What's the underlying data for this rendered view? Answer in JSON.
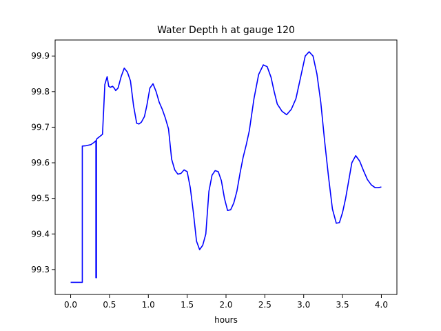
{
  "chart_data": {
    "type": "line",
    "title": "Water Depth h at gauge 120",
    "xlabel": "hours",
    "ylabel": "",
    "xlim": [
      -0.2,
      4.2
    ],
    "ylim": [
      99.23,
      99.945
    ],
    "x_ticks": [
      0.0,
      0.5,
      1.0,
      1.5,
      2.0,
      2.5,
      3.0,
      3.5,
      4.0
    ],
    "x_tick_labels": [
      "0.0",
      "0.5",
      "1.0",
      "1.5",
      "2.0",
      "2.5",
      "3.0",
      "3.5",
      "4.0"
    ],
    "y_ticks": [
      99.3,
      99.4,
      99.5,
      99.6,
      99.7,
      99.8,
      99.9
    ],
    "y_tick_labels": [
      "99.3",
      "99.4",
      "99.5",
      "99.6",
      "99.7",
      "99.8",
      "99.9"
    ],
    "grid": false,
    "legend": false,
    "series": [
      {
        "color": "#0000ff",
        "x": [
          0.0,
          0.15,
          0.15,
          0.2,
          0.26,
          0.3,
          0.325,
          0.325,
          0.332,
          0.332,
          0.34,
          0.37,
          0.41,
          0.44,
          0.47,
          0.49,
          0.51,
          0.54,
          0.56,
          0.58,
          0.61,
          0.65,
          0.69,
          0.73,
          0.77,
          0.81,
          0.85,
          0.88,
          0.91,
          0.95,
          0.98,
          1.02,
          1.06,
          1.1,
          1.14,
          1.18,
          1.22,
          1.26,
          1.3,
          1.34,
          1.38,
          1.42,
          1.46,
          1.5,
          1.54,
          1.58,
          1.62,
          1.66,
          1.7,
          1.74,
          1.78,
          1.82,
          1.86,
          1.9,
          1.94,
          1.98,
          2.02,
          2.06,
          2.1,
          2.14,
          2.18,
          2.22,
          2.26,
          2.3,
          2.36,
          2.42,
          2.48,
          2.53,
          2.58,
          2.62,
          2.66,
          2.72,
          2.78,
          2.84,
          2.9,
          2.96,
          3.02,
          3.07,
          3.12,
          3.17,
          3.22,
          3.27,
          3.32,
          3.37,
          3.42,
          3.46,
          3.5,
          3.54,
          3.58,
          3.62,
          3.67,
          3.72,
          3.77,
          3.82,
          3.87,
          3.92,
          3.96,
          4.0
        ],
        "y": [
          99.264,
          99.264,
          99.647,
          99.648,
          99.651,
          99.657,
          99.662,
          99.277,
          99.277,
          99.665,
          99.668,
          99.673,
          99.68,
          99.82,
          99.842,
          99.815,
          99.812,
          99.815,
          99.81,
          99.803,
          99.81,
          99.842,
          99.866,
          99.855,
          99.83,
          99.76,
          99.711,
          99.709,
          99.714,
          99.73,
          99.76,
          99.81,
          99.822,
          99.8,
          99.77,
          99.75,
          99.725,
          99.695,
          99.61,
          99.58,
          99.568,
          99.57,
          99.58,
          99.575,
          99.53,
          99.46,
          99.38,
          99.356,
          99.368,
          99.4,
          99.52,
          99.565,
          99.578,
          99.575,
          99.55,
          99.5,
          99.466,
          99.468,
          99.487,
          99.52,
          99.57,
          99.615,
          99.65,
          99.69,
          99.78,
          99.848,
          99.875,
          99.87,
          99.84,
          99.8,
          99.765,
          99.745,
          99.735,
          99.75,
          99.78,
          99.84,
          99.9,
          99.912,
          99.9,
          99.85,
          99.77,
          99.66,
          99.56,
          99.47,
          99.43,
          99.432,
          99.46,
          99.5,
          99.55,
          99.6,
          99.62,
          99.605,
          99.578,
          99.553,
          99.538,
          99.53,
          99.53,
          99.532
        ]
      }
    ]
  }
}
